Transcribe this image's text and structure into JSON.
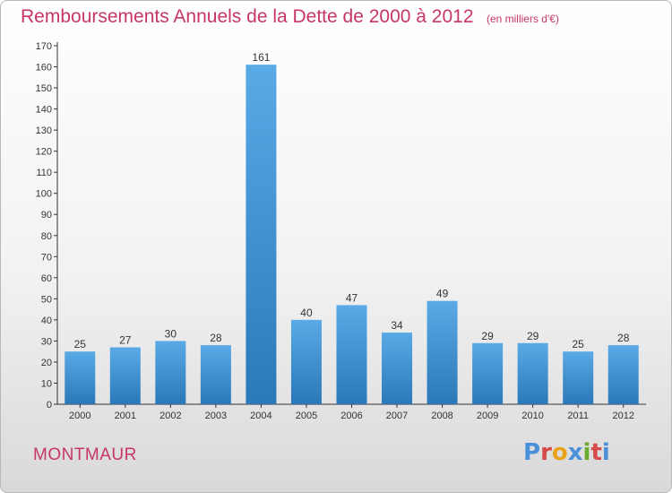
{
  "header": {
    "title": "Remboursements Annuels de la Dette de 2000 à 2012",
    "subtitle": "(en milliers d'€)"
  },
  "footer": {
    "commune": "MONTMAUR",
    "logo_text": "Proxiti",
    "logo_colors": [
      "#4a90d9",
      "#d64a4a",
      "#e8a21a",
      "#4a90d9",
      "#6aaa2c",
      "#d64a4a",
      "#4a90d9"
    ]
  },
  "colors": {
    "title": "#c8356a",
    "bar_light": "#5aaae6",
    "bar_dark": "#2a78b8",
    "axis": "#333333"
  },
  "chart_data": {
    "type": "bar",
    "categories": [
      "2000",
      "2001",
      "2002",
      "2003",
      "2004",
      "2005",
      "2006",
      "2007",
      "2008",
      "2009",
      "2010",
      "2011",
      "2012"
    ],
    "values": [
      25,
      27,
      30,
      28,
      161,
      40,
      47,
      34,
      49,
      29,
      29,
      25,
      28
    ],
    "data_labels": [
      "25",
      "27",
      "30",
      "28",
      "161",
      "40",
      "47",
      "34",
      "49",
      "29",
      "29",
      "25",
      "28"
    ],
    "y_ticks": [
      "0",
      "10",
      "20",
      "30",
      "40",
      "50",
      "60",
      "70",
      "80",
      "90",
      "100",
      "110",
      "120",
      "130",
      "140",
      "150",
      "160",
      "170"
    ],
    "ylim": [
      0,
      170
    ],
    "grid": false,
    "xlabel": "",
    "ylabel": ""
  }
}
